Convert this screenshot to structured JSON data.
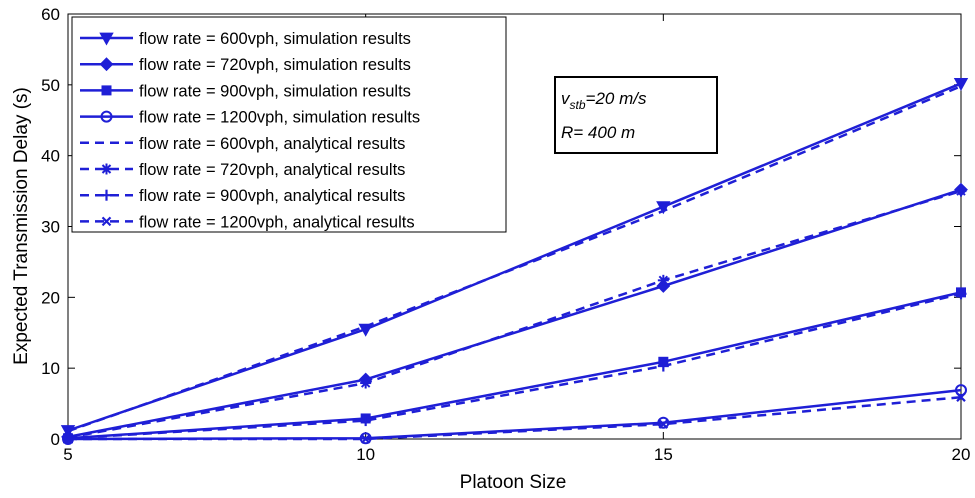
{
  "chart_data": {
    "type": "line",
    "xlabel": "Platoon Size",
    "ylabel": "Expected Transmission Delay (s)",
    "xlim": [
      5,
      20
    ],
    "ylim": [
      0,
      60
    ],
    "x_ticks": [
      5,
      10,
      15,
      20
    ],
    "y_ticks": [
      0,
      10,
      20,
      30,
      40,
      50,
      60
    ],
    "grid": false,
    "legend_position": "top-left",
    "line_color": "#1f1fd6",
    "x": [
      5,
      10,
      15,
      20
    ],
    "series": [
      {
        "name": "flow rate = 600vph, simulation results",
        "marker": "triangle-down",
        "dash": "solid",
        "values": [
          1.2,
          15.5,
          32.8,
          50.2
        ]
      },
      {
        "name": "flow rate = 720vph, simulation results",
        "marker": "diamond",
        "dash": "solid",
        "values": [
          0.3,
          8.4,
          21.6,
          35.2
        ]
      },
      {
        "name": "flow rate = 900vph, simulation results",
        "marker": "square",
        "dash": "solid",
        "values": [
          0.1,
          2.9,
          10.9,
          20.7
        ]
      },
      {
        "name": "flow rate = 1200vph, simulation results",
        "marker": "circle",
        "dash": "solid",
        "values": [
          0.0,
          0.1,
          2.3,
          6.9
        ]
      },
      {
        "name": "flow rate = 600vph, analytical results",
        "marker": "none",
        "dash": "dashed",
        "values": [
          1.1,
          15.9,
          32.2,
          49.8
        ]
      },
      {
        "name": "flow rate = 720vph, analytical results",
        "marker": "asterisk",
        "dash": "dashed",
        "values": [
          0.2,
          7.9,
          22.4,
          35.0
        ]
      },
      {
        "name": "flow rate = 900vph, analytical results",
        "marker": "plus",
        "dash": "dashed",
        "values": [
          0.1,
          2.6,
          10.3,
          20.5
        ]
      },
      {
        "name": "flow rate = 1200vph, analytical results",
        "marker": "x",
        "dash": "dashed",
        "values": [
          0.0,
          0.0,
          2.1,
          5.9
        ]
      }
    ],
    "annotation": {
      "v_symbol": "v",
      "v_subscript": "stb",
      "v_value": "=20 m/s",
      "r_text": "R= 400 m"
    }
  }
}
